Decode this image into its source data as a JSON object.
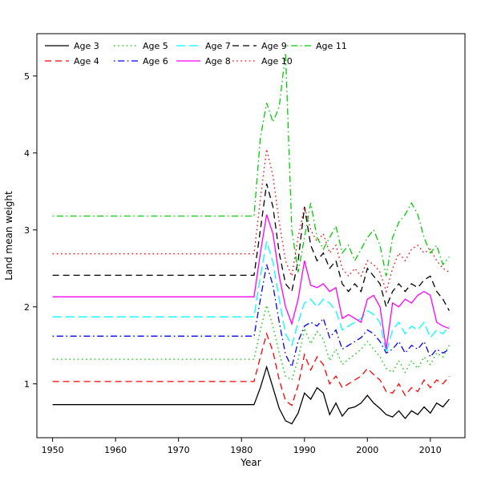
{
  "figure": {
    "background": "#ffffff"
  },
  "chart_data": {
    "type": "line",
    "title": "",
    "xlabel": "Year",
    "ylabel": "Land mean weight",
    "xlim": [
      1947.5,
      2015.5
    ],
    "ylim": [
      0.3,
      5.55
    ],
    "xticks": [
      1950,
      1960,
      1970,
      1980,
      1990,
      2000,
      2010
    ],
    "yticks": [
      1,
      2,
      3,
      4,
      5
    ],
    "grid": false,
    "legend_position": "top-inside",
    "legend_columns": 5,
    "flat_from": 1950,
    "recent_from": 1982,
    "series": [
      {
        "name": "Age 3",
        "color": "#000000",
        "linestyle": "solid",
        "flat_value": 0.73,
        "values": [
          0.73,
          0.95,
          1.22,
          0.95,
          0.68,
          0.52,
          0.48,
          0.62,
          0.88,
          0.8,
          0.95,
          0.88,
          0.6,
          0.75,
          0.58,
          0.68,
          0.7,
          0.75,
          0.85,
          0.75,
          0.68,
          0.6,
          0.57,
          0.65,
          0.55,
          0.65,
          0.6,
          0.7,
          0.62,
          0.75,
          0.7,
          0.8
        ]
      },
      {
        "name": "Age 4",
        "color": "#FF0000",
        "linestyle": "dashed",
        "flat_value": 1.03,
        "values": [
          1.03,
          1.35,
          1.65,
          1.42,
          1.05,
          0.78,
          0.72,
          0.98,
          1.38,
          1.18,
          1.35,
          1.25,
          1.0,
          1.1,
          0.95,
          1.0,
          1.05,
          1.1,
          1.2,
          1.12,
          1.05,
          0.9,
          0.88,
          1.0,
          0.85,
          0.95,
          0.9,
          1.05,
          0.95,
          1.05,
          1.0,
          1.1
        ]
      },
      {
        "name": "Age 5",
        "color": "#00CD00",
        "linestyle": "dotted",
        "flat_value": 1.32,
        "values": [
          1.32,
          1.7,
          2.02,
          1.75,
          1.4,
          1.1,
          1.05,
          1.32,
          1.72,
          1.52,
          1.68,
          1.58,
          1.3,
          1.45,
          1.25,
          1.32,
          1.38,
          1.45,
          1.55,
          1.45,
          1.35,
          1.2,
          1.15,
          1.3,
          1.15,
          1.3,
          1.2,
          1.35,
          1.25,
          1.4,
          1.35,
          1.5
        ]
      },
      {
        "name": "Age 6",
        "color": "#0000FF",
        "linestyle": "dashdot",
        "flat_value": 1.62,
        "values": [
          1.62,
          2.1,
          2.55,
          2.28,
          1.8,
          1.38,
          1.22,
          1.55,
          1.75,
          1.8,
          1.75,
          1.85,
          1.6,
          1.7,
          1.45,
          1.5,
          1.55,
          1.6,
          1.7,
          1.65,
          1.55,
          1.4,
          1.45,
          1.55,
          1.4,
          1.5,
          1.45,
          1.55,
          1.35,
          1.45,
          1.4,
          1.45
        ]
      },
      {
        "name": "Age 7",
        "color": "#00FFFF",
        "linestyle": "longdash",
        "flat_value": 1.87,
        "values": [
          1.87,
          2.4,
          2.85,
          2.58,
          2.1,
          1.65,
          1.5,
          1.8,
          2.05,
          2.1,
          2.0,
          2.1,
          2.05,
          1.95,
          1.7,
          1.75,
          1.8,
          1.85,
          1.95,
          1.9,
          1.8,
          1.4,
          1.7,
          1.8,
          1.65,
          1.75,
          1.7,
          1.8,
          1.6,
          1.7,
          1.65,
          1.75
        ]
      },
      {
        "name": "Age 8",
        "color": "#FF00FF",
        "linestyle": "solid",
        "flat_value": 2.13,
        "values": [
          2.13,
          2.7,
          3.2,
          2.95,
          2.4,
          2.0,
          1.78,
          2.1,
          2.6,
          2.28,
          2.25,
          2.3,
          2.2,
          2.25,
          1.85,
          1.9,
          1.85,
          1.8,
          2.1,
          2.15,
          2.0,
          1.45,
          2.05,
          2.0,
          2.1,
          2.05,
          2.15,
          2.2,
          2.15,
          1.8,
          1.75,
          1.72
        ]
      },
      {
        "name": "Age 9",
        "color": "#000000",
        "linestyle": "dashed",
        "flat_value": 2.41,
        "values": [
          2.41,
          3.0,
          3.6,
          3.3,
          2.7,
          2.3,
          2.2,
          2.6,
          3.3,
          2.8,
          2.6,
          2.7,
          2.5,
          2.6,
          2.3,
          2.2,
          2.3,
          2.2,
          2.5,
          2.4,
          2.3,
          2.0,
          2.2,
          2.3,
          2.2,
          2.3,
          2.25,
          2.35,
          2.4,
          2.2,
          2.1,
          1.95
        ]
      },
      {
        "name": "Age 10",
        "color": "#FF0000",
        "linestyle": "dotted",
        "flat_value": 2.69,
        "values": [
          2.69,
          3.4,
          4.05,
          3.7,
          3.1,
          2.6,
          2.4,
          2.9,
          3.3,
          3.0,
          2.85,
          2.95,
          2.7,
          2.8,
          2.5,
          2.4,
          2.5,
          2.4,
          2.6,
          2.55,
          2.45,
          2.2,
          2.5,
          2.7,
          2.6,
          2.75,
          2.8,
          2.7,
          2.75,
          2.6,
          2.5,
          2.45
        ]
      },
      {
        "name": "Age 11",
        "color": "#00CD00",
        "linestyle": "dashdot",
        "flat_value": 3.18,
        "values": [
          3.18,
          4.2,
          4.65,
          4.4,
          4.6,
          5.3,
          3.0,
          2.45,
          2.9,
          3.35,
          2.9,
          2.75,
          2.9,
          3.05,
          2.7,
          2.8,
          2.6,
          2.75,
          2.9,
          3.0,
          2.8,
          2.4,
          2.9,
          3.1,
          3.2,
          3.35,
          3.2,
          2.9,
          2.7,
          2.8,
          2.55,
          2.65
        ]
      }
    ]
  }
}
